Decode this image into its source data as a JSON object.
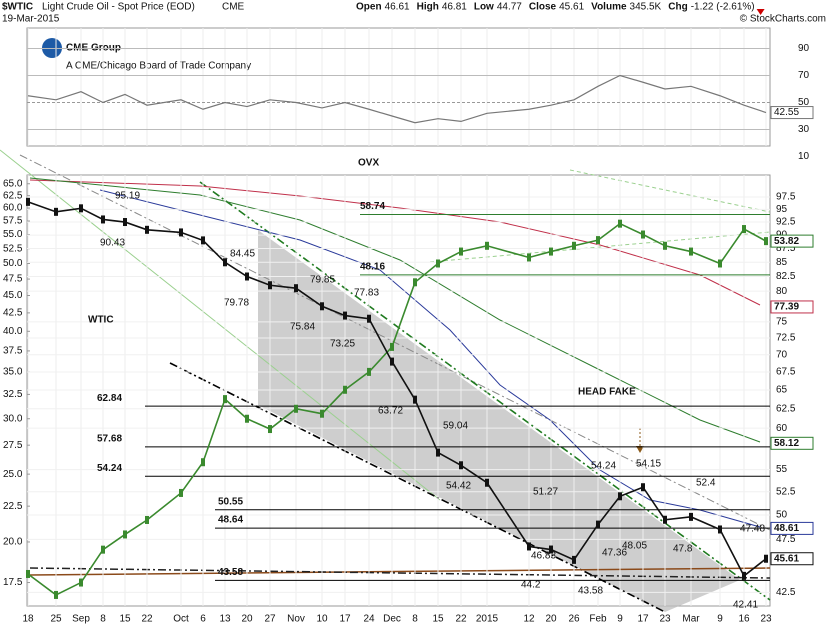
{
  "header": {
    "symbol": "$WTIC",
    "subtitle": "Light Crude Oil - Spot Price (EOD)",
    "exchange": "CME",
    "date": "19-Mar-2015",
    "stats": [
      {
        "label": "Open",
        "value": "46.61"
      },
      {
        "label": "High",
        "value": "46.81"
      },
      {
        "label": "Low",
        "value": "44.77"
      },
      {
        "label": "Close",
        "value": "45.61"
      },
      {
        "label": "Volume",
        "value": "345.5K"
      },
      {
        "label": "Chg",
        "value": "-1.22 (-2.61%)"
      }
    ],
    "credit": "© StockCharts.com"
  },
  "logo": {
    "name": "CME Group",
    "tagline": "A CME/Chicago Board of Trade Company"
  },
  "chart_data": {
    "type": "line",
    "log_scale": true,
    "categories": [
      "18",
      "25",
      "Sep",
      "8",
      "15",
      "22",
      "Oct",
      "6",
      "13",
      "20",
      "27",
      "Nov",
      "10",
      "17",
      "24",
      "Dec",
      "8",
      "15",
      "22",
      "2015",
      "12",
      "20",
      "26",
      "Feb",
      "9",
      "17",
      "23",
      "Mar",
      "9",
      "16",
      "23"
    ],
    "series": [
      {
        "name": "OVX",
        "color": "#3a8a2e",
        "axis": "y",
        "values": [
          18.0,
          16.8,
          17.5,
          19.5,
          20.5,
          21.5,
          23.5,
          26,
          32,
          30,
          29,
          31,
          30.5,
          33,
          35,
          38,
          47,
          50,
          52,
          53,
          51,
          52,
          53,
          54,
          57,
          55,
          53,
          52,
          50,
          56,
          53.82
        ]
      },
      {
        "name": "WTIC",
        "color": "#111111",
        "axis": "y2",
        "values": [
          96.5,
          94.5,
          95.2,
          93,
          92.5,
          91,
          90.5,
          89,
          85,
          82.5,
          81,
          80.5,
          77.5,
          76,
          75.5,
          69,
          63.7,
          57,
          55.5,
          53.5,
          46.8,
          46.5,
          45.5,
          49,
          52,
          53,
          49.5,
          49.8,
          48.5,
          44,
          45.61
        ]
      }
    ],
    "ylim": [
      16.2,
      66.9
    ],
    "yticks": [
      {
        "value": 65,
        "label": "65.0"
      },
      62.5,
      {
        "value": 60,
        "label": "60.0"
      },
      57.5,
      {
        "value": 55,
        "label": "55.0"
      },
      52.5,
      {
        "value": 50,
        "label": "50.0"
      },
      47.5,
      {
        "value": 45,
        "label": "45.0"
      },
      42.5,
      {
        "value": 40,
        "label": "40.0"
      },
      37.5,
      {
        "value": 35,
        "label": "35.0"
      },
      32.5,
      {
        "value": 30,
        "label": "30.0"
      },
      27.5,
      {
        "value": 25,
        "label": "25.0"
      },
      22.5,
      {
        "value": 20,
        "label": "20.0"
      },
      17.5
    ],
    "y2lim": [
      41.3,
      102.1
    ],
    "y2ticks": [
      97.5,
      95,
      92.5,
      90,
      87.5,
      85,
      82.5,
      80,
      75,
      72.5,
      70,
      67.5,
      65,
      62.5,
      60,
      55,
      52.5,
      50,
      47.5,
      42.5
    ],
    "grid": true,
    "annotations": [
      "OVX",
      "WTIC",
      "HEAD FAKE"
    ],
    "levels": [
      {
        "value": 62.84,
        "axis": "y2"
      },
      {
        "value": 57.68,
        "axis": "y2"
      },
      {
        "value": 54.24,
        "axis": "y2"
      },
      {
        "value": 50.55,
        "axis": "y2"
      },
      {
        "value": 48.64,
        "axis": "y2"
      },
      {
        "value": 43.58,
        "axis": "y2"
      },
      {
        "value": 58.74,
        "axis": "y",
        "color": "#2e7d2e"
      },
      {
        "value": 48.16,
        "axis": "y",
        "color": "#2e7d2e"
      }
    ],
    "price_labels": [
      95.19,
      90.43,
      84.45,
      79.78,
      79.85,
      75.84,
      77.83,
      73.25,
      63.72,
      59.04,
      54.42,
      51.27,
      46.83,
      44.2,
      43.58,
      47.36,
      48.05,
      54.24,
      54.15,
      47.8,
      52.4,
      47.48,
      42.41
    ],
    "markers": [
      {
        "value": 53.82,
        "axis": "y",
        "color": "#2e7d2e"
      },
      {
        "value": 77.39,
        "axis": "y2",
        "color": "#c0304a"
      },
      {
        "value": 58.12,
        "axis": "y2",
        "color": "#2e7d2e"
      },
      {
        "value": 48.61,
        "axis": "y2",
        "color": "#2a3a9a"
      },
      {
        "value": 45.61,
        "axis": "y2",
        "color": "#111111"
      }
    ],
    "rsi": {
      "ylim": [
        0,
        100
      ],
      "yticks": [
        90,
        70,
        50,
        30,
        10
      ],
      "color": "#777777",
      "values": [
        55,
        52,
        58,
        50,
        56,
        48,
        52,
        45,
        50,
        47,
        52,
        50,
        46,
        50,
        45,
        40,
        35,
        38,
        36,
        42,
        45,
        48,
        52,
        62,
        70,
        65,
        60,
        62,
        55,
        48,
        42.55
      ],
      "marker": 42.55
    }
  }
}
